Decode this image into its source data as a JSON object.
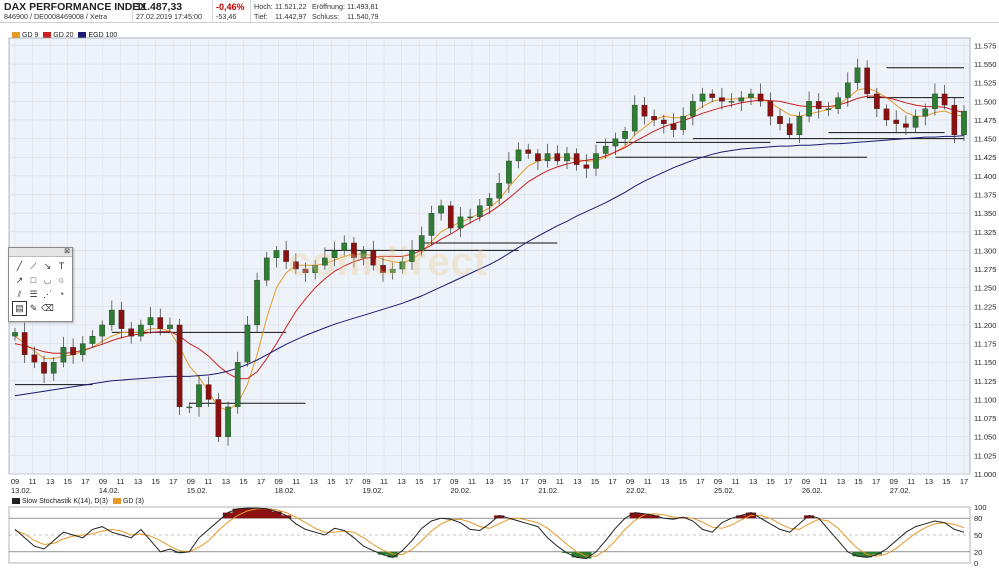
{
  "header": {
    "title": "DAX PERFORMANCE INDEX",
    "ids": "846900 / DE0008469008 / Xetra",
    "last": "11.487,33",
    "datetime": "27.02.2019 17:45:00",
    "change_pct": "-0,46%",
    "change_abs": "-53,46",
    "high_label": "Hoch:",
    "high": "11.521,22",
    "open_label": "Eröffnung:",
    "open": "11.493,81",
    "low_label": "Tief:",
    "low": "11.442,97",
    "close_label": "Schluss:",
    "close": "11.540,79"
  },
  "legend": {
    "gd_label": "GD 9",
    "gd20_label": "GD 20",
    "egd_label": "EGD 100"
  },
  "watermark": "comdirect",
  "lower_legend": {
    "label": "Slow Stochastik K(14), D(3)",
    "d_label": "GD (3)"
  },
  "colors": {
    "up": "#2e7d32",
    "down": "#8b1010",
    "gd9": "#e59a28",
    "gd20": "#cc2020",
    "egd100": "#1c1c70",
    "grid": "#d7dde6",
    "plotbg": "#eef3f9"
  },
  "toolbox_icons": [
    "line-tool-icon",
    "ray-tool-icon",
    "arrow-tool-icon",
    "text-tool-icon",
    "arrow-up-icon",
    "rectangle-tool-icon",
    "arc-tool-icon",
    "circle-tool-icon",
    "trend-channel-icon",
    "fibonacci-icon",
    "gann-fan-icon",
    "fibo-arc-icon",
    "list-icon",
    "draw-icon",
    "eraser-icon"
  ],
  "chart_data": [
    {
      "type": "candlestick",
      "title": "DAX PERFORMANCE INDEX",
      "x_tick_labels": [
        "09",
        "11",
        "13",
        "15",
        "17",
        "09",
        "11",
        "13",
        "15",
        "17",
        "09",
        "11",
        "13",
        "15",
        "17",
        "09",
        "11",
        "13",
        "15",
        "17",
        "09",
        "11",
        "13",
        "15",
        "17",
        "09",
        "11",
        "13",
        "15",
        "17",
        "09",
        "11",
        "13",
        "15",
        "17",
        "09",
        "11",
        "13",
        "15",
        "17",
        "09",
        "11",
        "13",
        "15",
        "17",
        "09",
        "11",
        "13",
        "15",
        "17",
        "09",
        "11",
        "13",
        "15",
        "17"
      ],
      "date_labels": [
        "13.02.",
        "14.02.",
        "15.02.",
        "18.02.",
        "19.02.",
        "20.02.",
        "21.02.",
        "22.02.",
        "25.02.",
        "26.02.",
        "27.02."
      ],
      "y_ticks": [
        11000,
        11025,
        11050,
        11075,
        11100,
        11125,
        11150,
        11175,
        11200,
        11225,
        11250,
        11275,
        11300,
        11325,
        11350,
        11375,
        11400,
        11425,
        11450,
        11475,
        11500,
        11525,
        11550,
        11575
      ],
      "y_tick_labels": [
        "11.000",
        "11.025",
        "11.050",
        "11.075",
        "11.100",
        "11.125",
        "11.150",
        "11.175",
        "11.200",
        "11.225",
        "11.250",
        "11.275",
        "11.300",
        "11.325",
        "11.350",
        "11.375",
        "11.400",
        "11.425",
        "11.450",
        "11.475",
        "11.500",
        "11.525",
        "11.550",
        "11.575"
      ],
      "ylim": [
        11000,
        11585
      ],
      "grid": true,
      "legend_position": "top-left",
      "series": [
        {
          "name": "Kurs",
          "closes": [
            11190,
            11160,
            11150,
            11135,
            11150,
            11170,
            11160,
            11175,
            11185,
            11200,
            11220,
            11195,
            11185,
            11200,
            11210,
            11195,
            11200,
            11090,
            11090,
            11120,
            11100,
            11050,
            11090,
            11150,
            11200,
            11260,
            11290,
            11300,
            11285,
            11275,
            11270,
            11280,
            11290,
            11300,
            11310,
            11290,
            11300,
            11280,
            11270,
            11275,
            11285,
            11300,
            11320,
            11350,
            11360,
            11330,
            11345,
            11345,
            11360,
            11370,
            11390,
            11420,
            11435,
            11430,
            11420,
            11430,
            11420,
            11430,
            11415,
            11410,
            11430,
            11440,
            11450,
            11460,
            11495,
            11480,
            11475,
            11470,
            11462,
            11480,
            11500,
            11510,
            11505,
            11500,
            11500,
            11505,
            11510,
            11500,
            11480,
            11470,
            11455,
            11480,
            11500,
            11490,
            11490,
            11505,
            11525,
            11545,
            11510,
            11490,
            11475,
            11470,
            11465,
            11480,
            11490,
            11510,
            11495,
            11455,
            11487
          ]
        },
        {
          "name": "GD 9",
          "values": [
            11185,
            11175,
            11165,
            11155,
            11155,
            11158,
            11160,
            11165,
            11170,
            11178,
            11185,
            11190,
            11190,
            11190,
            11195,
            11195,
            11192,
            11170,
            11145,
            11130,
            11110,
            11090,
            11085,
            11095,
            11120,
            11160,
            11210,
            11250,
            11270,
            11280,
            11280,
            11280,
            11282,
            11287,
            11292,
            11295,
            11295,
            11293,
            11288,
            11285,
            11283,
            11288,
            11297,
            11312,
            11325,
            11332,
            11338,
            11343,
            11350,
            11357,
            11368,
            11385,
            11400,
            11413,
            11420,
            11423,
            11425,
            11425,
            11422,
            11420,
            11420,
            11425,
            11432,
            11440,
            11455,
            11465,
            11475,
            11480,
            11478,
            11478,
            11485,
            11493,
            11500,
            11503,
            11503,
            11504,
            11505,
            11504,
            11498,
            11490,
            11482,
            11480,
            11483,
            11486,
            11489,
            11495,
            11505,
            11515,
            11518,
            11513,
            11505,
            11495,
            11485,
            11480,
            11480,
            11485,
            11487,
            11482,
            11480
          ]
        },
        {
          "name": "GD 20",
          "values": [
            11175,
            11172,
            11168,
            11164,
            11162,
            11162,
            11163,
            11166,
            11170,
            11174,
            11179,
            11183,
            11186,
            11188,
            11190,
            11191,
            11191,
            11185,
            11175,
            11168,
            11158,
            11145,
            11135,
            11128,
            11128,
            11137,
            11155,
            11175,
            11197,
            11218,
            11235,
            11250,
            11262,
            11272,
            11279,
            11285,
            11289,
            11291,
            11292,
            11292,
            11292,
            11295,
            11300,
            11307,
            11315,
            11322,
            11330,
            11337,
            11344,
            11351,
            11360,
            11370,
            11381,
            11392,
            11400,
            11407,
            11412,
            11416,
            11419,
            11421,
            11423,
            11427,
            11432,
            11438,
            11446,
            11453,
            11460,
            11466,
            11470,
            11474,
            11479,
            11484,
            11488,
            11492,
            11495,
            11498,
            11500,
            11502,
            11501,
            11500,
            11497,
            11494,
            11493,
            11493,
            11493,
            11495,
            11499,
            11504,
            11507,
            11507,
            11505,
            11502,
            11498,
            11495,
            11493,
            11493,
            11492,
            11488,
            11485
          ]
        },
        {
          "name": "EGD 100",
          "values": [
            11105,
            11107,
            11109,
            11111,
            11113,
            11115,
            11117,
            11119,
            11121,
            11123,
            11125,
            11126,
            11127,
            11128,
            11129,
            11130,
            11131,
            11131,
            11131,
            11132,
            11133,
            11135,
            11138,
            11142,
            11147,
            11153,
            11160,
            11167,
            11174,
            11180,
            11186,
            11191,
            11196,
            11201,
            11205,
            11209,
            11213,
            11217,
            11221,
            11225,
            11229,
            11234,
            11239,
            11245,
            11251,
            11257,
            11263,
            11269,
            11275,
            11281,
            11288,
            11296,
            11304,
            11312,
            11319,
            11326,
            11333,
            11339,
            11346,
            11352,
            11358,
            11364,
            11371,
            11378,
            11386,
            11393,
            11399,
            11405,
            11411,
            11416,
            11421,
            11425,
            11429,
            11432,
            11434,
            11436,
            11437,
            11438,
            11439,
            11440,
            11440,
            11441,
            11441,
            11442,
            11443,
            11443,
            11444,
            11445,
            11446,
            11447,
            11448,
            11449,
            11450,
            11451,
            11452,
            11452,
            11453,
            11453,
            11454
          ]
        }
      ],
      "support_resistance": [
        11120,
        11190,
        11095,
        11300,
        11310,
        11445,
        11425,
        11458,
        11505,
        11545,
        11450
      ]
    },
    {
      "type": "line",
      "title": "Slow Stochastik K(14), D(3)",
      "y_ticks": [
        0,
        20,
        50,
        80,
        100
      ],
      "y_tick_labels": [
        "0",
        "20",
        "50",
        "80",
        "100"
      ],
      "ylim": [
        0,
        100
      ],
      "series": [
        {
          "name": "K(14)",
          "values": [
            60,
            45,
            30,
            25,
            40,
            55,
            50,
            45,
            60,
            65,
            55,
            50,
            45,
            60,
            40,
            20,
            25,
            18,
            20,
            45,
            60,
            75,
            90,
            97,
            98,
            98,
            97,
            92,
            85,
            70,
            60,
            55,
            50,
            62,
            58,
            45,
            30,
            22,
            15,
            10,
            22,
            40,
            62,
            75,
            80,
            78,
            72,
            60,
            58,
            70,
            85,
            80,
            75,
            70,
            65,
            45,
            30,
            18,
            10,
            8,
            20,
            40,
            62,
            80,
            90,
            88,
            85,
            80,
            78,
            82,
            75,
            60,
            55,
            72,
            80,
            85,
            90,
            80,
            70,
            60,
            55,
            70,
            85,
            80,
            60,
            40,
            20,
            12,
            10,
            15,
            25,
            40,
            55,
            65,
            70,
            75,
            72,
            60,
            55
          ]
        },
        {
          "name": "GD (3)",
          "values": [
            58,
            52,
            40,
            33,
            35,
            43,
            48,
            50,
            52,
            57,
            60,
            57,
            50,
            52,
            48,
            40,
            30,
            22,
            20,
            28,
            40,
            58,
            73,
            85,
            93,
            97,
            97,
            95,
            90,
            82,
            72,
            62,
            55,
            55,
            57,
            55,
            45,
            33,
            23,
            16,
            15,
            24,
            40,
            57,
            70,
            77,
            78,
            73,
            65,
            62,
            70,
            78,
            80,
            76,
            72,
            62,
            48,
            33,
            20,
            12,
            12,
            23,
            40,
            60,
            76,
            86,
            88,
            86,
            82,
            81,
            80,
            73,
            64,
            62,
            68,
            77,
            85,
            85,
            80,
            70,
            62,
            60,
            70,
            78,
            75,
            62,
            43,
            26,
            15,
            12,
            16,
            26,
            40,
            53,
            63,
            70,
            72,
            69,
            63
          ]
        }
      ]
    }
  ]
}
